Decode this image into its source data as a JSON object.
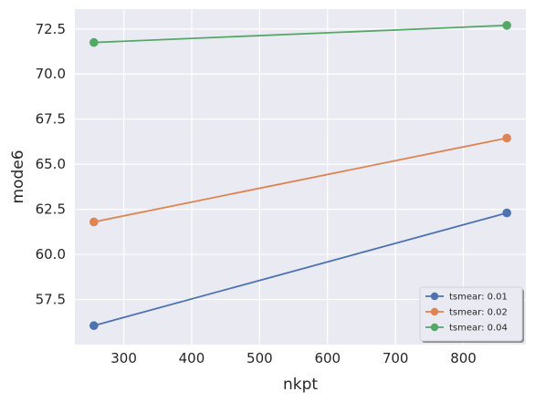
{
  "chart_data": {
    "type": "line",
    "xlabel": "nkpt",
    "ylabel": "mode6",
    "xlim": [
      228,
      892
    ],
    "ylim": [
      55.0,
      73.6
    ],
    "xticks": [
      300,
      400,
      500,
      600,
      700,
      800
    ],
    "yticks": [
      57.5,
      60.0,
      62.5,
      65.0,
      67.5,
      70.0,
      72.5
    ],
    "x": [
      256,
      864
    ],
    "series": [
      {
        "name": "tsmear: 0.01",
        "color": "#4c72b0",
        "values": [
          56.05,
          62.3
        ]
      },
      {
        "name": "tsmear: 0.02",
        "color": "#dd8452",
        "values": [
          61.8,
          66.45
        ]
      },
      {
        "name": "tsmear: 0.04",
        "color": "#55a868",
        "values": [
          71.75,
          72.7
        ]
      }
    ],
    "grid": true,
    "legend_position": "bottom-right",
    "background": "#eaeaf2",
    "grid_color": "#ffffff"
  }
}
